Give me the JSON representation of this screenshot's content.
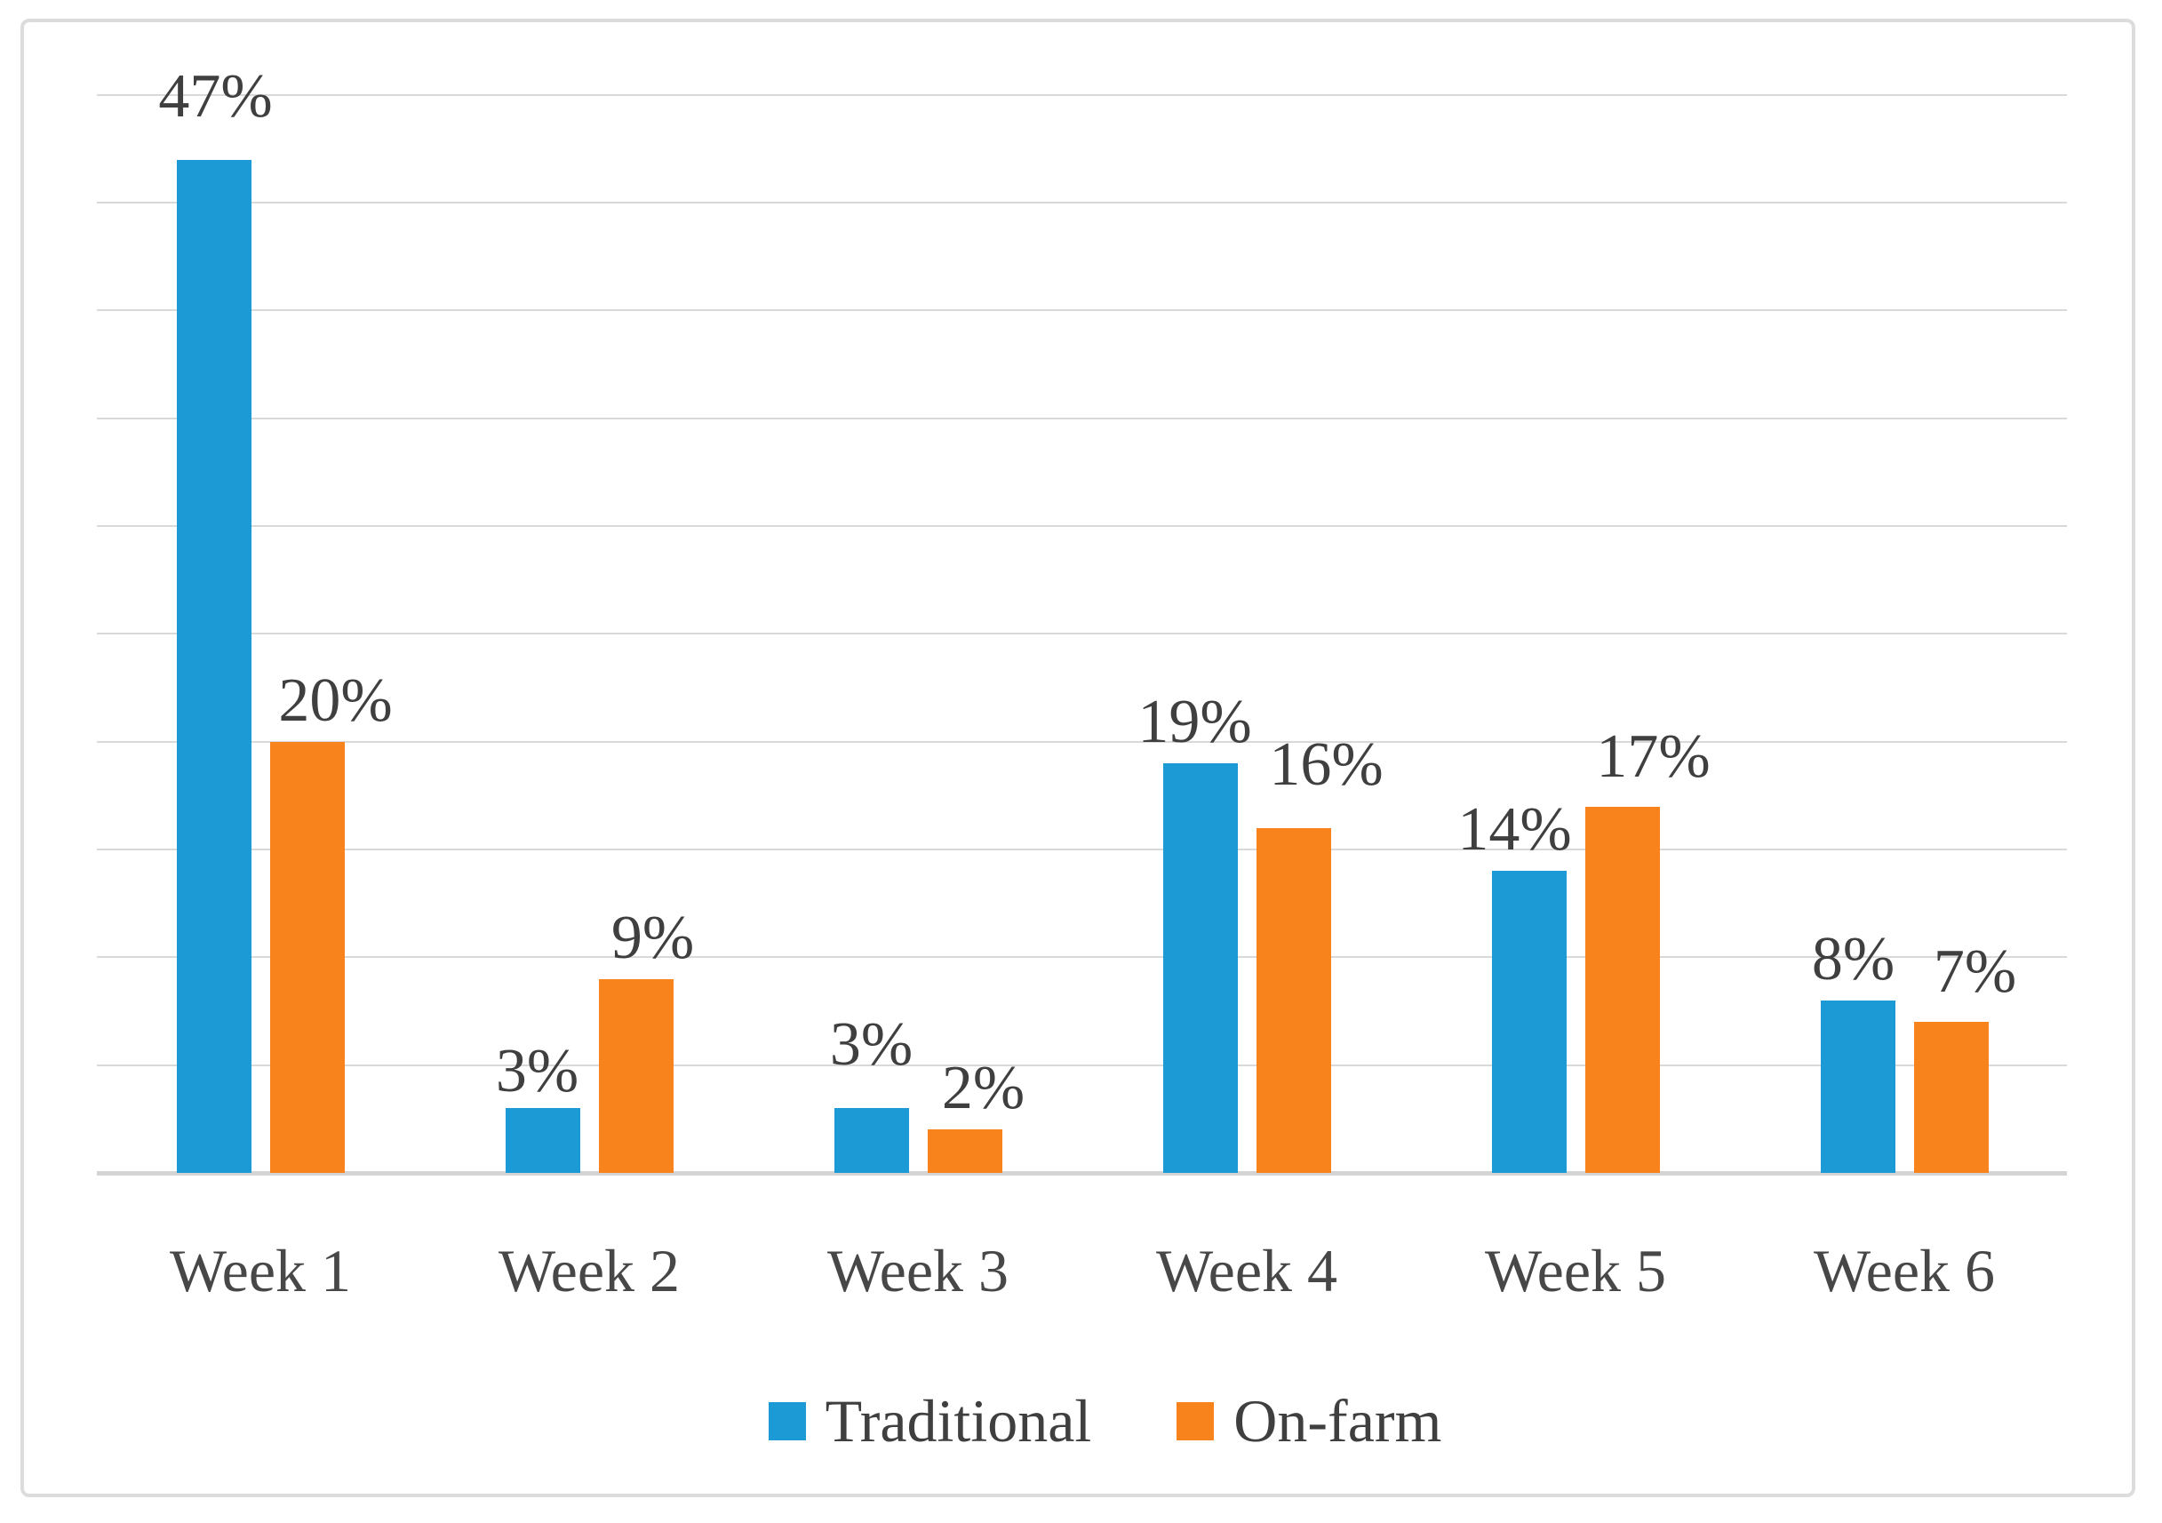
{
  "chart_data": {
    "type": "bar",
    "title": "",
    "xlabel": "",
    "ylabel": "",
    "categories": [
      "Week 1",
      "Week 2",
      "Week 3",
      "Week 4",
      "Week 5",
      "Week 6"
    ],
    "series": [
      {
        "name": "Traditional",
        "color": "#1b9ad6",
        "values": [
          47,
          3,
          3,
          19,
          14,
          8
        ],
        "data_labels": [
          "47%",
          "3%",
          "3%",
          "19%",
          "14%",
          "8%"
        ],
        "label_offsets": [
          [
            2,
            0
          ],
          [
            -6,
            30
          ],
          [
            0,
            0
          ],
          [
            -6,
            25
          ],
          [
            -16,
            25
          ],
          [
            -5,
            25
          ]
        ]
      },
      {
        "name": "On-farm",
        "color": "#f8821c",
        "values": [
          20,
          9,
          2,
          16,
          17,
          7
        ],
        "data_labels": [
          "20%",
          "9%",
          "2%",
          "16%",
          "17%",
          "7%"
        ],
        "label_offsets": [
          [
            32,
            25
          ],
          [
            19,
            25
          ],
          [
            21,
            25
          ],
          [
            37,
            0
          ],
          [
            35,
            15
          ],
          [
            27,
            15
          ]
        ]
      }
    ],
    "ylim": [
      0,
      50
    ],
    "grid_step": 5,
    "grid": "on",
    "y_axis_labels_visible": false,
    "legend_position": "bottom",
    "colors": {
      "gridline": "#d9d9d9",
      "axisline": "#d4d4d4",
      "frame_border": "#dcdcdc",
      "label_text": "#3f3f3f",
      "category_text": "#474747"
    }
  }
}
